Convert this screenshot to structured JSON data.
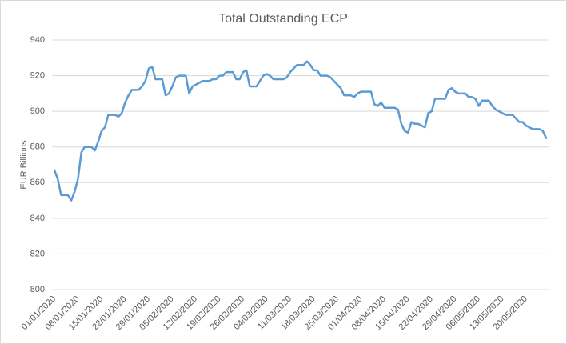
{
  "chart_data": {
    "type": "line",
    "title": "Total Outstanding ECP",
    "y_label": "EUR Billions",
    "categories": [
      "01/01/2020",
      null,
      null,
      null,
      null,
      null,
      null,
      "08/01/2020",
      null,
      null,
      null,
      null,
      null,
      null,
      "15/01/2020",
      null,
      null,
      null,
      null,
      null,
      null,
      "22/01/2020",
      null,
      null,
      null,
      null,
      null,
      null,
      "29/01/2020",
      null,
      null,
      null,
      null,
      null,
      null,
      "05/02/2020",
      null,
      null,
      null,
      null,
      null,
      null,
      "12/02/2020",
      null,
      null,
      null,
      null,
      null,
      null,
      "19/02/2020",
      null,
      null,
      null,
      null,
      null,
      null,
      "26/02/2020",
      null,
      null,
      null,
      null,
      null,
      null,
      "04/03/2020",
      null,
      null,
      null,
      null,
      null,
      null,
      "11/03/2020",
      null,
      null,
      null,
      null,
      null,
      null,
      "18/03/2020",
      null,
      null,
      null,
      null,
      null,
      null,
      "25/03/2020",
      null,
      null,
      null,
      null,
      null,
      null,
      "01/04/2020",
      null,
      null,
      null,
      null,
      null,
      null,
      "08/04/2020",
      null,
      null,
      null,
      null,
      null,
      null,
      "15/04/2020",
      null,
      null,
      null,
      null,
      null,
      null,
      "22/04/2020",
      null,
      null,
      null,
      null,
      null,
      null,
      "29/04/2020",
      null,
      null,
      null,
      null,
      null,
      null,
      "06/05/2020",
      null,
      null,
      null,
      null,
      null,
      null,
      "13/05/2020",
      null,
      null,
      null,
      null,
      null,
      null,
      "20/05/2020",
      null,
      null,
      null,
      null,
      null,
      null
    ],
    "series": [
      {
        "name": "Total Outstanding ECP",
        "color": "#5b9bd5",
        "values": [
          867,
          862,
          853,
          853,
          853,
          850,
          855,
          862,
          877,
          880,
          880,
          880,
          878,
          883,
          889,
          891,
          898,
          898,
          898,
          897,
          899,
          905,
          909,
          912,
          912,
          912,
          914,
          917,
          924,
          925,
          918,
          918,
          918,
          909,
          910,
          914,
          919,
          920,
          920,
          920,
          910,
          914,
          915,
          916,
          917,
          917,
          917,
          918,
          918,
          920,
          920,
          922,
          922,
          922,
          918,
          918,
          922,
          923,
          914,
          914,
          914,
          917,
          920,
          921,
          920,
          918,
          918,
          918,
          918,
          919,
          922,
          924,
          926,
          926,
          926,
          928,
          926,
          923,
          923,
          920,
          920,
          920,
          919,
          917,
          915,
          913,
          909,
          909,
          909,
          908,
          910,
          911,
          911,
          911,
          911,
          904,
          903,
          905,
          902,
          902,
          902,
          902,
          901,
          893,
          889,
          888,
          894,
          893,
          893,
          892,
          891,
          899,
          900,
          907,
          907,
          907,
          907,
          912,
          913,
          911,
          910,
          910,
          910,
          908,
          908,
          907,
          903,
          906,
          906,
          906,
          903,
          901,
          900,
          899,
          898,
          898,
          898,
          896,
          894,
          894,
          892,
          891,
          890,
          890,
          890,
          889,
          885
        ]
      }
    ],
    "ylim": [
      800,
      940
    ],
    "yticks": [
      800,
      820,
      840,
      860,
      880,
      900,
      920,
      940
    ],
    "grid": true
  }
}
